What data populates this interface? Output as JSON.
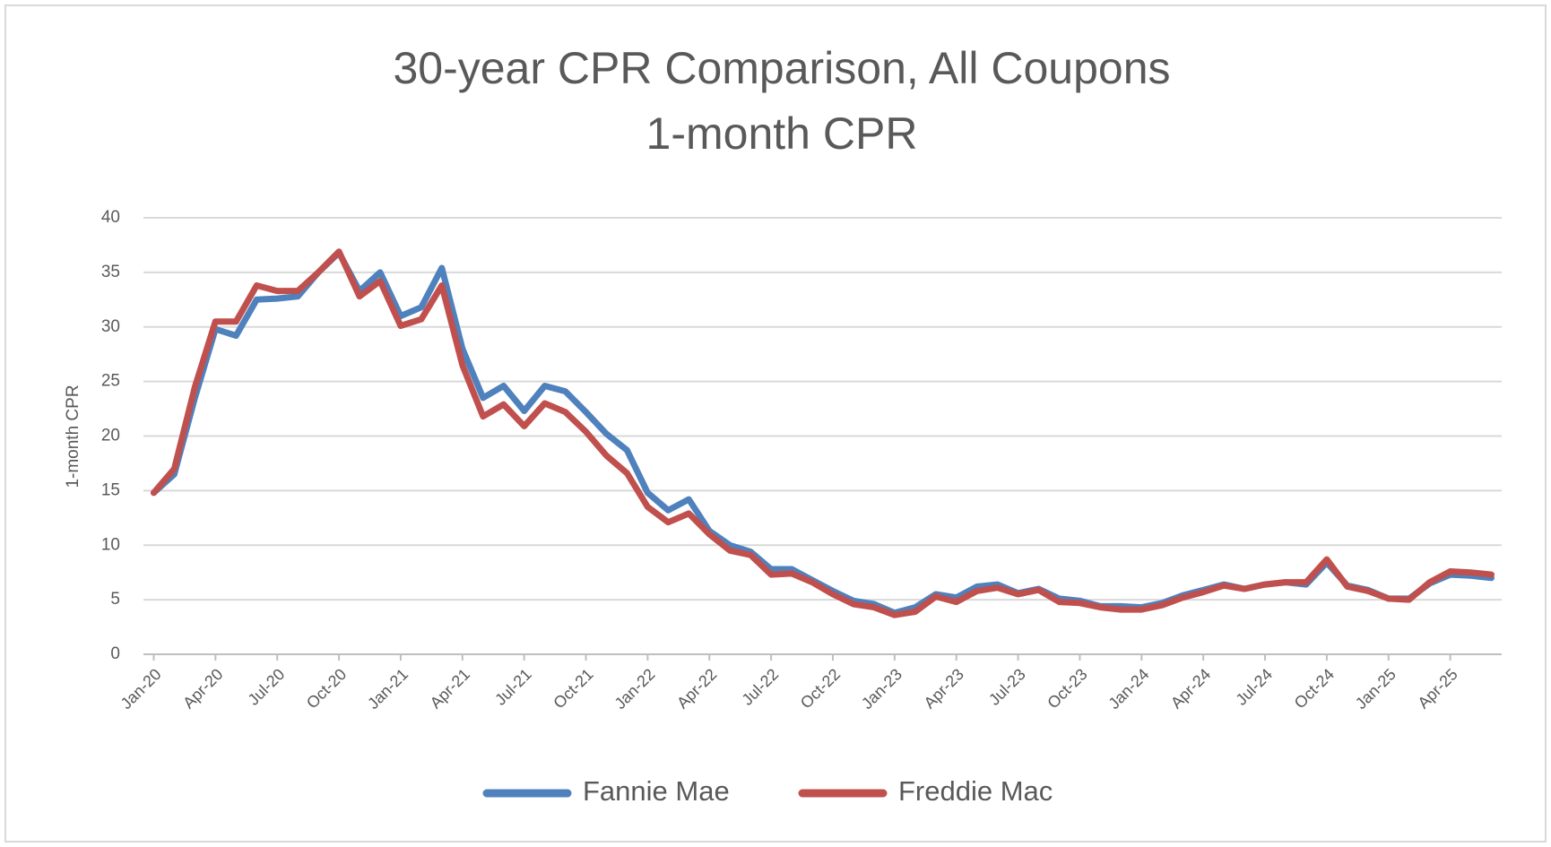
{
  "chart_data": {
    "type": "line",
    "title": "30-year CPR Comparison, All Coupons",
    "subtitle": "1-month CPR",
    "y_label": "1-month CPR",
    "categories": [
      "Jan-20",
      null,
      null,
      "Apr-20",
      null,
      null,
      "Jul-20",
      null,
      null,
      "Oct-20",
      null,
      null,
      "Jan-21",
      null,
      null,
      "Apr-21",
      null,
      null,
      "Jul-21",
      null,
      null,
      "Oct-21",
      null,
      null,
      "Jan-22",
      null,
      null,
      "Apr-22",
      null,
      null,
      "Jul-22",
      null,
      null,
      "Oct-22",
      null,
      null,
      "Jan-23",
      null,
      null,
      "Apr-23",
      null,
      null,
      "Jul-23",
      null,
      null,
      "Oct-23",
      null,
      null,
      "Jan-24",
      null,
      null,
      "Apr-24",
      null,
      null,
      "Jul-24",
      null,
      null,
      "Oct-24",
      null,
      null,
      "Jan-25",
      null,
      null,
      "Apr-25",
      null,
      null
    ],
    "series": [
      {
        "name": "Fannie Mae",
        "color": "#4f81bd",
        "values": [
          14.8,
          16.5,
          23.5,
          29.8,
          29.2,
          32.5,
          32.6,
          32.8,
          35,
          36.8,
          33.3,
          35,
          31,
          31.8,
          35.4,
          28,
          23.5,
          24.6,
          22.3,
          24.6,
          24.1,
          22.2,
          20.2,
          18.7,
          14.8,
          13.2,
          14.2,
          11.3,
          10,
          9.4,
          7.8,
          7.8,
          6.8,
          5.8,
          4.9,
          4.6,
          3.8,
          4.3,
          5.5,
          5.2,
          6.2,
          6.4,
          5.6,
          6,
          5.1,
          4.9,
          4.4,
          4.4,
          4.3,
          4.7,
          5.4,
          5.9,
          6.4,
          6,
          6.4,
          6.6,
          6.4,
          8.4,
          6.3,
          5.9,
          5.1,
          5.1,
          6.5,
          7.3,
          7.2,
          7
        ]
      },
      {
        "name": "Freddie Mac",
        "color": "#c0504d",
        "values": [
          14.8,
          17,
          24.5,
          30.5,
          30.5,
          33.8,
          33.3,
          33.3,
          35,
          36.9,
          32.8,
          34.2,
          30.1,
          30.7,
          33.8,
          26.5,
          21.8,
          22.9,
          20.9,
          23,
          22.2,
          20.4,
          18.2,
          16.6,
          13.5,
          12.1,
          12.9,
          11,
          9.5,
          9.1,
          7.3,
          7.4,
          6.6,
          5.5,
          4.6,
          4.3,
          3.6,
          3.9,
          5.3,
          4.8,
          5.8,
          6.1,
          5.5,
          5.9,
          4.8,
          4.7,
          4.3,
          4.1,
          4.1,
          4.5,
          5.2,
          5.7,
          6.3,
          6,
          6.4,
          6.6,
          6.6,
          8.7,
          6.2,
          5.8,
          5.1,
          5,
          6.6,
          7.6,
          7.5,
          7.3
        ]
      }
    ],
    "ylim": [
      0,
      40
    ],
    "yticks": [
      0,
      5,
      10,
      15,
      20,
      25,
      30,
      35,
      40
    ],
    "grid": true,
    "legend": "bottom"
  }
}
